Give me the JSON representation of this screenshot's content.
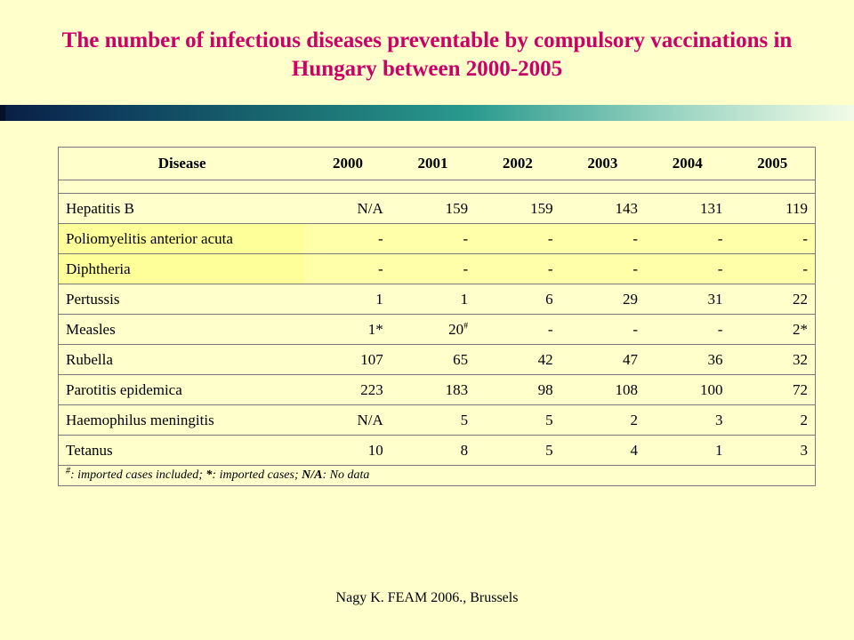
{
  "title": "The number of infectious diseases preventable by compulsory vaccinations in Hungary between 2000-2005",
  "table": {
    "headers": [
      "Disease",
      "2000",
      "2001",
      "2002",
      "2003",
      "2004",
      "2005"
    ],
    "rows": [
      {
        "name": "Hepatitis B",
        "values": [
          "N/A",
          "159",
          "159",
          "143",
          "131",
          "119"
        ]
      },
      {
        "name": "Poliomyelitis anterior acuta",
        "values": [
          "-",
          "-",
          "-",
          "-",
          "-",
          "-"
        ],
        "highlight": true
      },
      {
        "name": "Diphtheria",
        "values": [
          "-",
          "-",
          "-",
          "-",
          "-",
          "-"
        ],
        "highlight": true
      },
      {
        "name": "Pertussis",
        "values": [
          "1",
          "1",
          "6",
          "29",
          "31",
          "22"
        ]
      },
      {
        "name": "Measles",
        "values": [
          "1*",
          "20",
          "-",
          "-",
          "-",
          "2*"
        ],
        "sup": {
          "1": "#"
        }
      },
      {
        "name": "Rubella",
        "values": [
          "107",
          "65",
          "42",
          "47",
          "36",
          "32"
        ]
      },
      {
        "name": "Parotitis epidemica",
        "values": [
          "223",
          "183",
          "98",
          "108",
          "100",
          "72"
        ]
      },
      {
        "name": "Haemophilus meningitis",
        "values": [
          "N/A",
          "5",
          "5",
          "2",
          "3",
          "2"
        ]
      },
      {
        "name": "Tetanus",
        "values": [
          "10",
          "8",
          "5",
          "4",
          "1",
          "3"
        ]
      }
    ],
    "footnote": {
      "sup": "#",
      "text1": ": imported cases included; ",
      "bold1": "*",
      "text2": ": imported cases; ",
      "bold2": "N/A",
      "text3": ": No data"
    }
  },
  "footer": "Nagy K. FEAM 2006., Brussels",
  "colors": {
    "background": "#ffffcc",
    "title": "#cc0066",
    "highlight_row": "#ffff99"
  }
}
